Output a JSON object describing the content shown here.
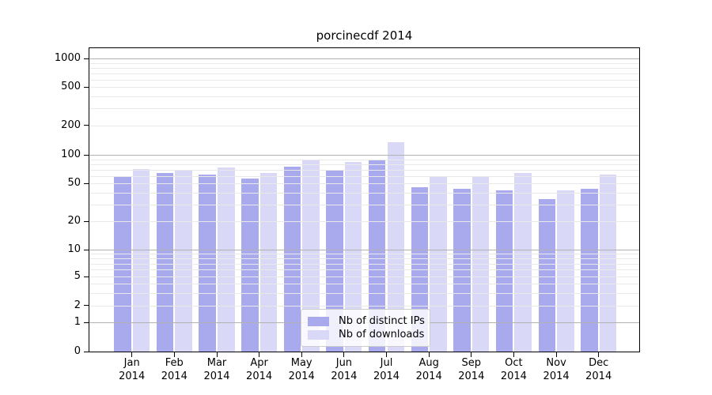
{
  "title": "porcinecdf 2014",
  "colors": {
    "distinct_ips": "#a9a9ee",
    "downloads": "#d9d9f7",
    "grid_major": "#b2b2b2",
    "grid_minor": "#e9e9e9",
    "spine": "#000000"
  },
  "legend": {
    "items": [
      {
        "key": "distinct_ips",
        "label": "Nb of distinct IPs"
      },
      {
        "key": "downloads",
        "label": "Nb of downloads"
      }
    ]
  },
  "y_axis": {
    "tick_labels": [
      "1000",
      "500",
      "200",
      "100",
      "50",
      "20",
      "10",
      "5",
      "2",
      "1",
      "0"
    ]
  },
  "x_axis": {
    "months": [
      "Jan",
      "Feb",
      "Mar",
      "Apr",
      "May",
      "Jun",
      "Jul",
      "Aug",
      "Sep",
      "Oct",
      "Nov",
      "Dec"
    ],
    "year": "2014"
  },
  "chart_data": {
    "type": "bar",
    "title": "porcinecdf 2014",
    "categories": [
      "Jan 2014",
      "Feb 2014",
      "Mar 2014",
      "Apr 2014",
      "May 2014",
      "Jun 2014",
      "Jul 2014",
      "Aug 2014",
      "Sep 2014",
      "Oct 2014",
      "Nov 2014",
      "Dec 2014"
    ],
    "series": [
      {
        "name": "Nb of distinct IPs",
        "color": "#a9a9ee",
        "values": [
          60,
          65,
          62,
          56,
          75,
          70,
          89,
          46,
          44,
          42,
          34,
          44
        ]
      },
      {
        "name": "Nb of downloads",
        "color": "#d9d9f7",
        "values": [
          71,
          68,
          73,
          64,
          88,
          84,
          135,
          58,
          60,
          64,
          42,
          62
        ]
      }
    ],
    "xlabel": "",
    "ylabel": "",
    "yscale": "log",
    "yticks": [
      1000,
      500,
      200,
      100,
      50,
      20,
      10,
      5,
      2,
      1,
      0
    ],
    "ylim": [
      0,
      1300
    ],
    "grid": true,
    "legend_position": "lower center"
  }
}
